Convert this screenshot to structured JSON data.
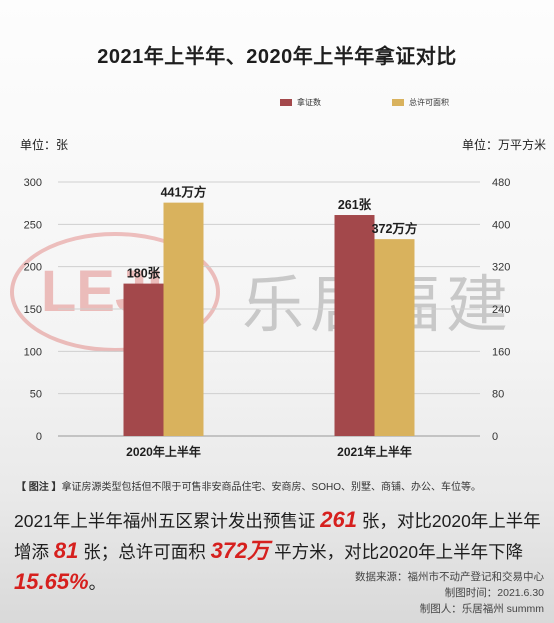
{
  "title": "2021年上半年、2020年上半年拿证对比",
  "legend": [
    {
      "label": "拿证数",
      "color": "#a3484b"
    },
    {
      "label": "总许可面积",
      "color": "#d9b25d"
    }
  ],
  "unit_left": "单位：张",
  "unit_right": "单位：万平方米",
  "chart_data": {
    "type": "bar",
    "categories": [
      "2020年上半年",
      "2021年上半年"
    ],
    "series": [
      {
        "name": "拿证数",
        "axis": "left",
        "color": "#a3484b",
        "values": [
          180,
          261
        ],
        "labels": [
          "180张",
          "261张"
        ]
      },
      {
        "name": "总许可面积",
        "axis": "right",
        "color": "#d9b25d",
        "values": [
          441,
          372
        ],
        "labels": [
          "441万方",
          "372万方"
        ]
      }
    ],
    "y_left": {
      "min": 0,
      "max": 300,
      "ticks": [
        0,
        50,
        100,
        150,
        200,
        250,
        300
      ]
    },
    "y_right": {
      "min": 0,
      "max": 480,
      "ticks": [
        0,
        80,
        160,
        240,
        320,
        400,
        480
      ]
    },
    "grid": true
  },
  "watermark": {
    "logo": "LEJU",
    "text": "乐居福建"
  },
  "note": {
    "label": "【 图注 】",
    "text": "拿证房源类型包括但不限于可售非安商品住宅、安商房、SOHO、别墅、商铺、办公、车位等。"
  },
  "summary": {
    "p1": "2021年上半年福州五区累计发出预售证 ",
    "v1": "261",
    "p2": " 张，对比2020年上半年增添 ",
    "v2": "81",
    "p3": " 张；总许可面积 ",
    "v3": "372万",
    "p4": " 平方米，对比2020年上半年下降 ",
    "v4": "15.65%",
    "p5": "。"
  },
  "credits": {
    "source": "数据来源：福州市不动产登记和交易中心",
    "date": "制图时间：2021.6.30",
    "author": "制图人：乐居福州 summm"
  }
}
